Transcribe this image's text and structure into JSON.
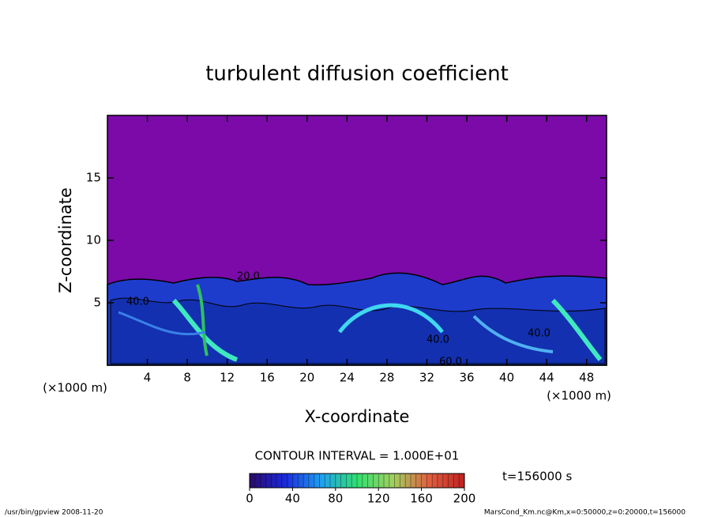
{
  "chart_data": {
    "type": "contour",
    "title": "turbulent diffusion coefficient",
    "x_label": "X-coordinate",
    "y_label": "Z-coordinate",
    "x_unit": "(×1000 m)",
    "y_unit": "(×1000 m)",
    "xlim": [
      0,
      50
    ],
    "xticks": [
      4,
      8,
      12,
      16,
      20,
      24,
      28,
      32,
      36,
      40,
      44,
      48
    ],
    "ylim": [
      0,
      20
    ],
    "yticks": [
      5,
      10,
      15
    ],
    "background_color": "#7b0aa9",
    "contour_labels": [
      "20.0",
      "40.0",
      "40.0",
      "40.0",
      "60.0"
    ],
    "contour_interval": "CONTOUR INTERVAL = 1.000E+01",
    "time_label": "t=156000 s",
    "colorbar": {
      "lim": [
        0,
        200
      ],
      "ticks": [
        0,
        40,
        80,
        120,
        160,
        200
      ],
      "colors": [
        "#2a0a6a",
        "#1a2ae0",
        "#20a0f0",
        "#30e070",
        "#a0d060",
        "#e06040",
        "#c02020"
      ]
    },
    "footer_left": "/usr/bin/gpview  2008-11-20",
    "footer_right": "MarsCond_Km.nc@Km,x=0:50000,z=0:20000,t=156000"
  }
}
